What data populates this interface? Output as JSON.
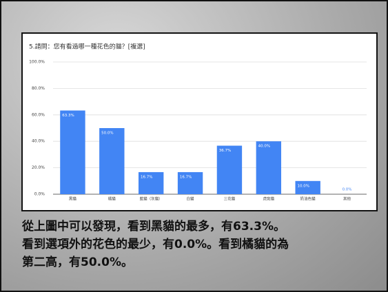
{
  "chart_data": {
    "type": "bar",
    "title": "5.請問：您有看過哪一種花色的貓？[複選]",
    "categories": [
      "黑貓",
      "橘貓",
      "藍貓（灰貓）",
      "白貓",
      "三花貓",
      "虎斑貓",
      "奶油色貓",
      "其他"
    ],
    "values": [
      63.3,
      50.0,
      16.7,
      16.7,
      36.7,
      40.0,
      10.0,
      0.0
    ],
    "value_labels": [
      "63.3%",
      "50.0%",
      "16.7%",
      "16.7%",
      "36.7%",
      "40.0%",
      "10.0%",
      "0.0%"
    ],
    "color": "#4285f4",
    "ylim": [
      0,
      100
    ],
    "yticks": [
      {
        "value": 0,
        "label": "0.0%"
      },
      {
        "value": 20,
        "label": "20.0%"
      },
      {
        "value": 40,
        "label": "40.0%"
      },
      {
        "value": 60,
        "label": "60.0%"
      },
      {
        "value": 80,
        "label": "80.0%"
      },
      {
        "value": 100,
        "label": "100.0%"
      }
    ],
    "grid": true
  },
  "caption": [
    "從上圖中可以發現，看到黑貓的最多，有63.3%。",
    "看到選項外的花色的最少，有0.0%。看到橘貓的為",
    "第二高，有50.0%。"
  ]
}
